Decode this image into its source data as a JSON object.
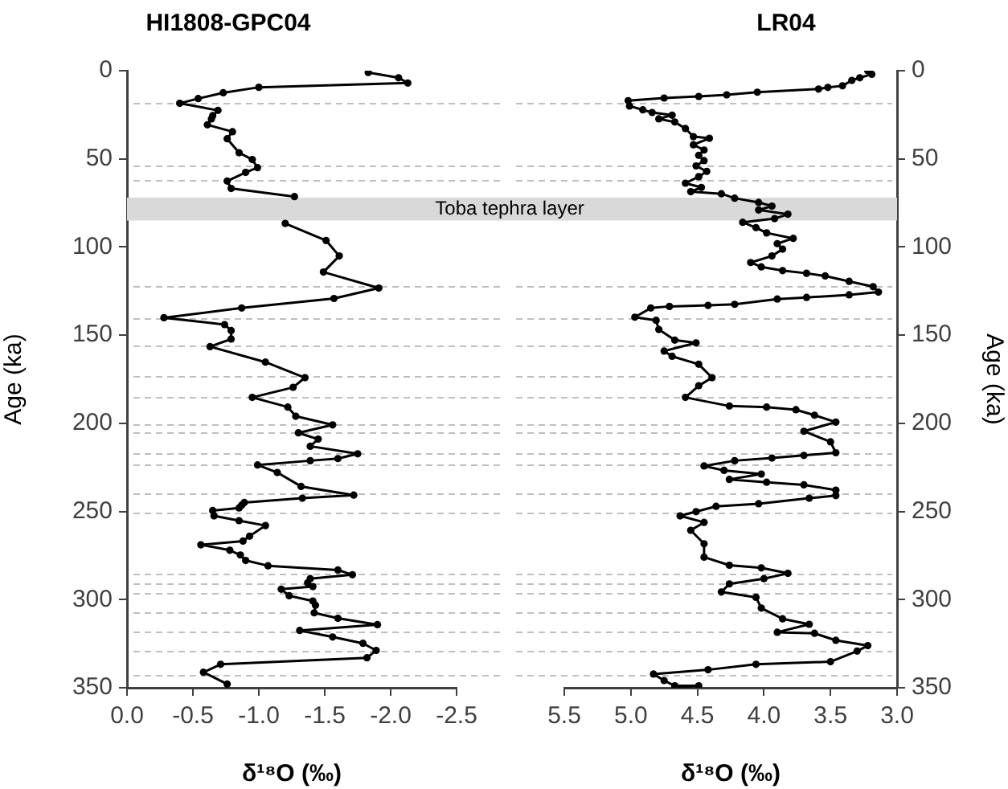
{
  "chart_data": [
    {
      "type": "line",
      "title": "HI1808-GPC04",
      "xlabel": "δ¹⁸O (‰)",
      "ylabel": "Age (ka)",
      "marker": "circle",
      "line_style": "solid",
      "xlim": [
        0,
        -2.5
      ],
      "xticks": [
        {
          "value": 0,
          "label": "0.0"
        },
        {
          "value": -0.5,
          "label": "-0.5"
        },
        {
          "value": -1,
          "label": "-1.0"
        },
        {
          "value": -1.5,
          "label": "-1.5"
        },
        {
          "value": -2,
          "label": "-2.0"
        },
        {
          "value": -2.5,
          "label": "-2.5"
        }
      ],
      "ylim": [
        350,
        0
      ],
      "yticks": [
        0,
        50,
        100,
        150,
        200,
        250,
        300,
        350
      ],
      "series": [
        {
          "color": "#000000",
          "x": [
            -1.83,
            -2.06,
            -2.13,
            -1.0,
            -0.73,
            -0.54,
            -0.4,
            -0.69,
            -0.65,
            -0.64,
            -0.61,
            -0.8,
            -0.76,
            -0.85,
            -0.95,
            -0.99,
            -0.9,
            -0.76,
            -0.79,
            -1.27,
            null,
            -1.2,
            -1.51,
            -1.61,
            -1.49,
            -1.91,
            -1.57,
            -0.87,
            -0.28,
            -0.74,
            -0.79,
            -0.79,
            -0.63,
            -1.05,
            -1.35,
            -1.26,
            -0.95,
            -1.22,
            -1.28,
            -1.56,
            -1.3,
            -1.45,
            -1.39,
            -1.75,
            -1.6,
            -1.39,
            -0.99,
            -1.14,
            -1.32,
            -1.72,
            -1.33,
            -0.89,
            -0.87,
            -0.85,
            -0.65,
            -0.66,
            -0.85,
            -1.05,
            -0.93,
            -0.88,
            -0.56,
            -0.78,
            -0.86,
            -0.9,
            -1.07,
            -1.6,
            -1.71,
            -1.39,
            -1.37,
            -1.41,
            -1.17,
            -1.23,
            -1.41,
            -1.43,
            -1.42,
            -1.6,
            -1.9,
            -1.31,
            -1.56,
            -1.79,
            -1.89,
            -1.82,
            -0.71,
            -0.58,
            -0.76
          ],
          "values": [
            1,
            4,
            7,
            9.4,
            12.5,
            15.8,
            18.5,
            22.5,
            25.5,
            27.3,
            30.7,
            34.6,
            38.6,
            46.5,
            50.4,
            55,
            57.7,
            62.6,
            66.8,
            71.4,
            null,
            86.6,
            96.3,
            105.1,
            114.2,
            123.3,
            129.2,
            134.6,
            140.1,
            144,
            147.4,
            152.2,
            156.5,
            165.3,
            174.1,
            179.6,
            185.3,
            190.8,
            196,
            200.9,
            205.4,
            209,
            213,
            217.3,
            220,
            221.2,
            223.6,
            227.9,
            235.8,
            240.7,
            242.5,
            244.9,
            246.4,
            248,
            249.5,
            252.5,
            255.2,
            258,
            264,
            266.8,
            268.9,
            272,
            274.7,
            277.8,
            280.8,
            283.2,
            285.9,
            288.1,
            290.5,
            292.6,
            294.1,
            297.8,
            300.8,
            303.2,
            307.5,
            310.6,
            314.2,
            317.5,
            321.2,
            324.8,
            328.8,
            333,
            336.7,
            341.2,
            347.9
          ]
        }
      ],
      "ref_lines": [
        {
          "axis": "y",
          "value": 18.5,
          "color": "#bfbfbf",
          "line_style": "dashed"
        },
        {
          "axis": "y",
          "value": 54,
          "color": "#bfbfbf",
          "line_style": "dashed"
        },
        {
          "axis": "y",
          "value": 61.7,
          "color": "#bfbfbf",
          "line_style": "dashed"
        },
        {
          "axis": "y",
          "value": 122.5,
          "color": "#bfbfbf",
          "line_style": "dashed"
        },
        {
          "axis": "y",
          "value": 140.7,
          "color": "#bfbfbf",
          "line_style": "dashed"
        },
        {
          "axis": "y",
          "value": 156,
          "color": "#bfbfbf",
          "line_style": "dashed"
        },
        {
          "axis": "y",
          "value": 173,
          "color": "#bfbfbf",
          "line_style": "dashed"
        },
        {
          "axis": "y",
          "value": 185,
          "color": "#bfbfbf",
          "line_style": "dashed"
        },
        {
          "axis": "y",
          "value": 200.5,
          "color": "#bfbfbf",
          "line_style": "dashed"
        },
        {
          "axis": "y",
          "value": 205.4,
          "color": "#bfbfbf",
          "line_style": "dashed"
        },
        {
          "axis": "y",
          "value": 217,
          "color": "#bfbfbf",
          "line_style": "dashed"
        },
        {
          "axis": "y",
          "value": 223.6,
          "color": "#bfbfbf",
          "line_style": "dashed"
        },
        {
          "axis": "y",
          "value": 239.5,
          "color": "#bfbfbf",
          "line_style": "dashed"
        },
        {
          "axis": "y",
          "value": 250.7,
          "color": "#bfbfbf",
          "line_style": "dashed"
        },
        {
          "axis": "y",
          "value": 285,
          "color": "#bfbfbf",
          "line_style": "dashed"
        },
        {
          "axis": "y",
          "value": 290.5,
          "color": "#bfbfbf",
          "line_style": "dashed"
        },
        {
          "axis": "y",
          "value": 296,
          "color": "#bfbfbf",
          "line_style": "dashed"
        },
        {
          "axis": "y",
          "value": 307,
          "color": "#bfbfbf",
          "line_style": "dashed"
        },
        {
          "axis": "y",
          "value": 318,
          "color": "#bfbfbf",
          "line_style": "dashed"
        },
        {
          "axis": "y",
          "value": 329,
          "color": "#bfbfbf",
          "line_style": "dashed"
        },
        {
          "axis": "y",
          "value": 342.7,
          "color": "#bfbfbf",
          "line_style": "dashed"
        }
      ],
      "bands": [
        {
          "axis": "y",
          "from": 72,
          "to": 85,
          "label": "Toba tephra layer",
          "color": "#d9d9d9"
        }
      ]
    },
    {
      "type": "line",
      "title": "LR04",
      "xlabel": "δ¹⁸O (‰)",
      "ylabel": "Age (ka)",
      "marker": "circle",
      "line_style": "solid",
      "xlim": [
        5.5,
        3.0
      ],
      "xticks": [
        {
          "value": 5.5,
          "label": "5.5"
        },
        {
          "value": 5,
          "label": "5.0"
        },
        {
          "value": 4.5,
          "label": "4.5"
        },
        {
          "value": 4,
          "label": "4.0"
        },
        {
          "value": 3.5,
          "label": "3.5"
        },
        {
          "value": 3,
          "label": "3.0"
        }
      ],
      "ylim": [
        350,
        0
      ],
      "yticks": [
        0,
        50,
        100,
        150,
        200,
        250,
        300,
        350
      ],
      "series": [
        {
          "color": "#000000",
          "x": [
            3.22,
            3.19,
            3.28,
            3.34,
            3.41,
            3.52,
            3.59,
            4.05,
            4.28,
            4.49,
            4.75,
            5.02,
            5.01,
            4.91,
            4.84,
            4.69,
            4.79,
            4.67,
            4.59,
            4.53,
            4.41,
            4.53,
            4.45,
            4.49,
            4.45,
            4.51,
            4.43,
            4.49,
            4.59,
            4.47,
            4.55,
            4.32,
            4.22,
            4.04,
            3.94,
            4.04,
            3.82,
            3.92,
            4.16,
            4.06,
            3.98,
            3.78,
            3.9,
            3.86,
            3.94,
            4.1,
            4.02,
            3.86,
            3.68,
            3.54,
            3.36,
            3.18,
            3.14,
            3.36,
            3.68,
            3.9,
            4.22,
            4.42,
            4.71,
            4.85,
            4.97,
            4.81,
            4.79,
            4.67,
            4.51,
            4.75,
            4.69,
            4.49,
            4.39,
            4.49,
            4.59,
            4.26,
            3.98,
            3.76,
            3.62,
            3.46,
            3.7,
            3.5,
            3.46,
            3.7,
            3.94,
            4.22,
            4.45,
            4.3,
            4.02,
            4.26,
            3.98,
            3.7,
            3.46,
            3.46,
            3.66,
            4.04,
            4.36,
            4.51,
            4.63,
            4.45,
            4.55,
            4.45,
            4.45,
            4.26,
            4.02,
            3.82,
            4.0,
            4.26,
            4.32,
            4.06,
            4.02,
            3.86,
            3.66,
            3.9,
            3.62,
            3.46,
            3.22,
            3.3,
            3.5,
            4.06,
            4.42,
            4.83,
            4.75,
            4.67,
            4.49,
            4.67
          ],
          "values": [
            0,
            2,
            4,
            5.5,
            8.6,
            9.5,
            10.4,
            12.2,
            13.7,
            14.6,
            15.5,
            17,
            20,
            22.2,
            23.7,
            25.2,
            27.3,
            29.1,
            32.8,
            37.4,
            38.3,
            42,
            45,
            48,
            51,
            54,
            57.1,
            60.1,
            63.8,
            66.2,
            68.6,
            69.8,
            72.3,
            74.7,
            76.8,
            79,
            81.4,
            83.9,
            86,
            89,
            92,
            95.1,
            98.1,
            101.2,
            105.1,
            108.8,
            111.3,
            113.4,
            114.9,
            116.4,
            119.5,
            122.5,
            125.6,
            127.1,
            128.6,
            129.5,
            132.5,
            133.1,
            133.7,
            134.6,
            139.8,
            141.6,
            146.8,
            152.8,
            154.4,
            159,
            162,
            166.5,
            174.1,
            178.7,
            185.3,
            190.2,
            190.8,
            192.3,
            195.4,
            199.3,
            204.5,
            210.5,
            216.7,
            218.2,
            219.7,
            221.2,
            224.2,
            226.7,
            228.8,
            231.8,
            233.4,
            234.9,
            237.9,
            241,
            242.5,
            245.6,
            247.1,
            250.1,
            252.5,
            256.2,
            260.7,
            268.3,
            275.9,
            280.5,
            282,
            285.1,
            288.1,
            291.1,
            295.7,
            298.7,
            304.8,
            310.9,
            314,
            318.5,
            319.1,
            323.1,
            326.1,
            329.2,
            335.2,
            336.7,
            339.8,
            342.2,
            345.9,
            348.9,
            348.9,
            350
          ]
        }
      ],
      "ref_lines": [
        {
          "axis": "y",
          "value": 18.5,
          "color": "#bfbfbf",
          "line_style": "dashed"
        },
        {
          "axis": "y",
          "value": 54,
          "color": "#bfbfbf",
          "line_style": "dashed"
        },
        {
          "axis": "y",
          "value": 61.7,
          "color": "#bfbfbf",
          "line_style": "dashed"
        },
        {
          "axis": "y",
          "value": 122.5,
          "color": "#bfbfbf",
          "line_style": "dashed"
        },
        {
          "axis": "y",
          "value": 140.7,
          "color": "#bfbfbf",
          "line_style": "dashed"
        },
        {
          "axis": "y",
          "value": 156,
          "color": "#bfbfbf",
          "line_style": "dashed"
        },
        {
          "axis": "y",
          "value": 173,
          "color": "#bfbfbf",
          "line_style": "dashed"
        },
        {
          "axis": "y",
          "value": 185,
          "color": "#bfbfbf",
          "line_style": "dashed"
        },
        {
          "axis": "y",
          "value": 200.5,
          "color": "#bfbfbf",
          "line_style": "dashed"
        },
        {
          "axis": "y",
          "value": 205.4,
          "color": "#bfbfbf",
          "line_style": "dashed"
        },
        {
          "axis": "y",
          "value": 217,
          "color": "#bfbfbf",
          "line_style": "dashed"
        },
        {
          "axis": "y",
          "value": 223.6,
          "color": "#bfbfbf",
          "line_style": "dashed"
        },
        {
          "axis": "y",
          "value": 239.5,
          "color": "#bfbfbf",
          "line_style": "dashed"
        },
        {
          "axis": "y",
          "value": 250.7,
          "color": "#bfbfbf",
          "line_style": "dashed"
        },
        {
          "axis": "y",
          "value": 285,
          "color": "#bfbfbf",
          "line_style": "dashed"
        },
        {
          "axis": "y",
          "value": 290.5,
          "color": "#bfbfbf",
          "line_style": "dashed"
        },
        {
          "axis": "y",
          "value": 296,
          "color": "#bfbfbf",
          "line_style": "dashed"
        },
        {
          "axis": "y",
          "value": 307,
          "color": "#bfbfbf",
          "line_style": "dashed"
        },
        {
          "axis": "y",
          "value": 318,
          "color": "#bfbfbf",
          "line_style": "dashed"
        },
        {
          "axis": "y",
          "value": 329,
          "color": "#bfbfbf",
          "line_style": "dashed"
        },
        {
          "axis": "y",
          "value": 342.7,
          "color": "#bfbfbf",
          "line_style": "dashed"
        }
      ],
      "bands": [
        {
          "axis": "y",
          "from": 72,
          "to": 85,
          "color": "#d9d9d9"
        }
      ]
    }
  ]
}
